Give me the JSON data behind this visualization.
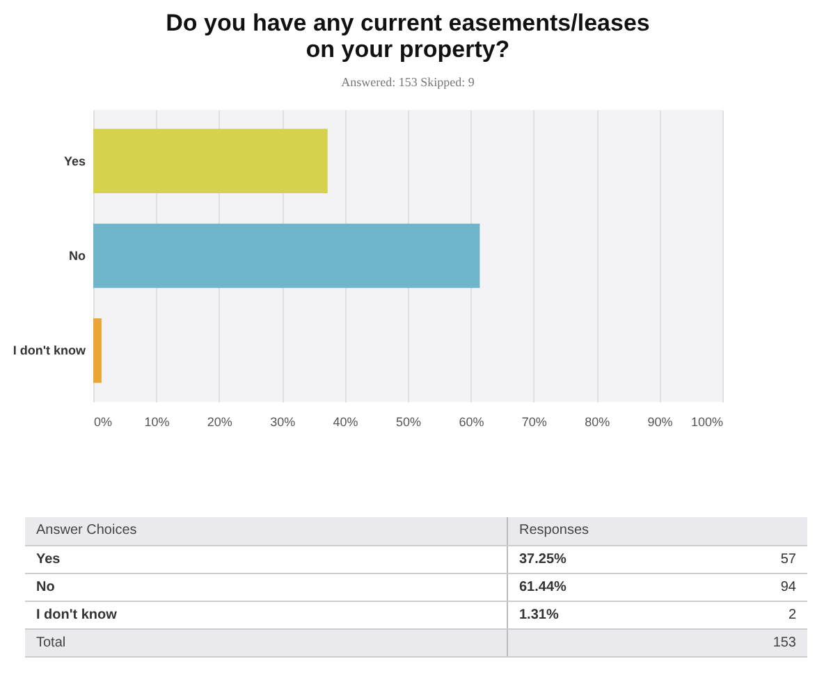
{
  "chart_data": {
    "type": "bar",
    "orientation": "horizontal",
    "title": [
      "Do you have any current easements/leases",
      "on your property?"
    ],
    "subtitle": "Answered: 153    Skipped: 9",
    "categories": [
      "Yes",
      "No",
      "I don't know"
    ],
    "values": [
      37.25,
      61.44,
      1.31
    ],
    "colors": [
      "#d6d24e",
      "#6fb6cc",
      "#eaa632"
    ],
    "xlim": [
      0,
      100
    ],
    "xticks": [
      {
        "value": 0,
        "label": "0%"
      },
      {
        "value": 10,
        "label": "10%"
      },
      {
        "value": 20,
        "label": "20%"
      },
      {
        "value": 30,
        "label": "30%"
      },
      {
        "value": 40,
        "label": "40%"
      },
      {
        "value": 50,
        "label": "50%"
      },
      {
        "value": 60,
        "label": "60%"
      },
      {
        "value": 70,
        "label": "70%"
      },
      {
        "value": 80,
        "label": "80%"
      },
      {
        "value": 90,
        "label": "90%"
      },
      {
        "value": 100,
        "label": "100%"
      }
    ],
    "grid": "x",
    "annotations": [
      "Answer Choices",
      "Responses",
      "37.25%",
      "61.44%",
      "1.31%",
      "57",
      "94",
      "2",
      "Total",
      "153"
    ]
  }
}
